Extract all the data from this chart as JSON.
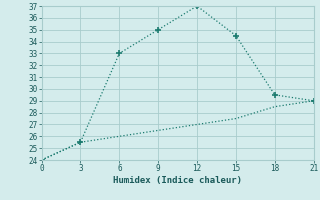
{
  "line1_x": [
    0,
    3,
    6,
    9,
    12,
    15,
    18,
    21
  ],
  "line1_y": [
    24,
    25.5,
    33,
    35,
    37,
    34.5,
    29.5,
    29
  ],
  "line2_x": [
    0,
    3,
    6,
    9,
    12,
    15,
    18,
    21
  ],
  "line2_y": [
    24,
    25.5,
    26.0,
    26.5,
    27.0,
    27.5,
    28.5,
    29
  ],
  "line_color": "#1a7a6e",
  "bg_color": "#d4ecec",
  "grid_color": "#a8cccc",
  "xlabel": "Humidex (Indice chaleur)",
  "xlim": [
    0,
    21
  ],
  "ylim": [
    24,
    37
  ],
  "xticks": [
    0,
    3,
    6,
    9,
    12,
    15,
    18,
    21
  ],
  "yticks": [
    24,
    25,
    26,
    27,
    28,
    29,
    30,
    31,
    32,
    33,
    34,
    35,
    36,
    37
  ],
  "font_color": "#1a5a5a",
  "tick_fontsize": 5.5,
  "xlabel_fontsize": 6.5
}
